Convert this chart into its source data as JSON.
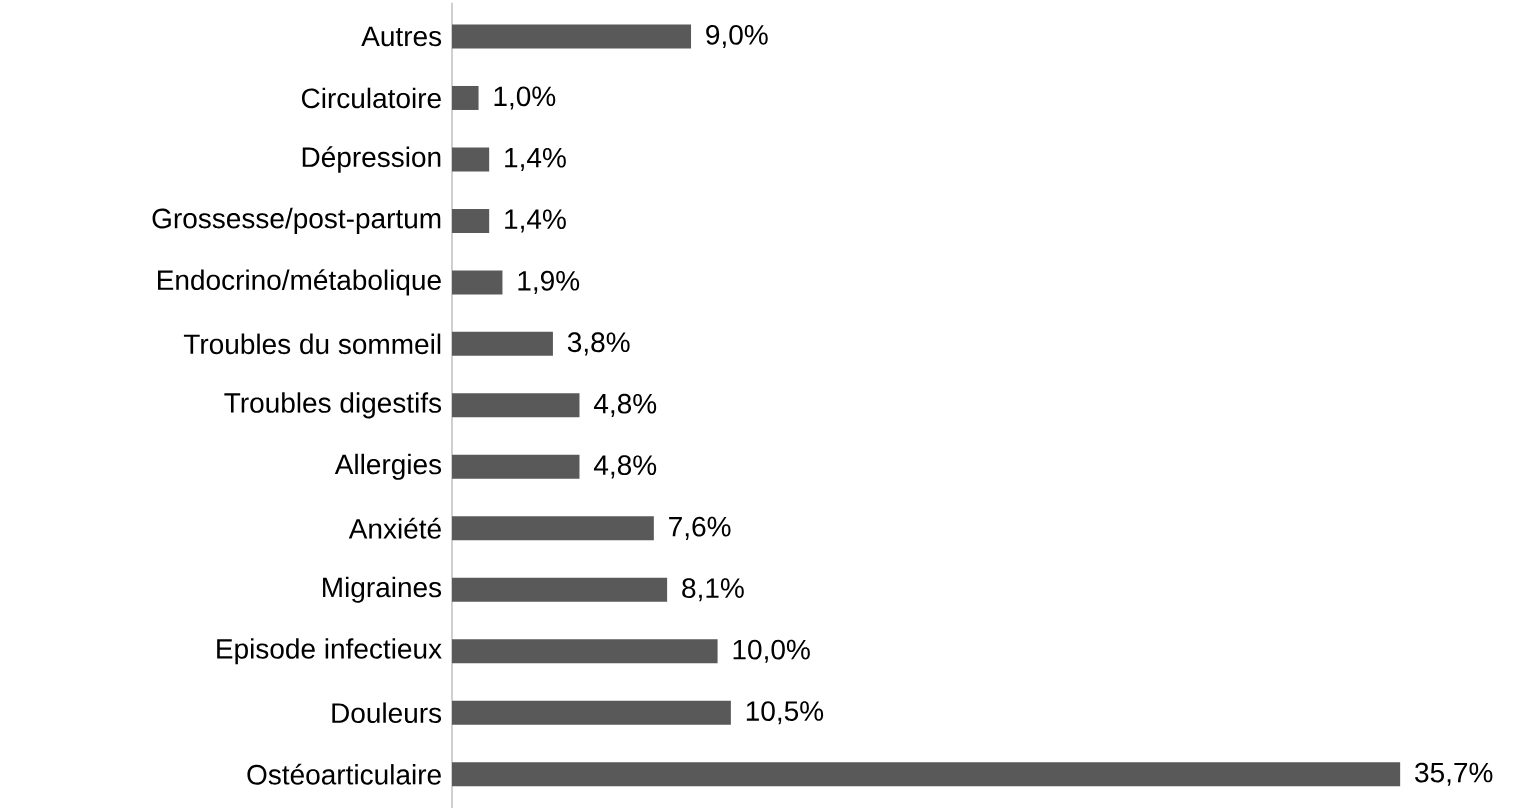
{
  "chart_data": {
    "type": "bar",
    "orientation": "horizontal",
    "categories": [
      "Autres",
      "Circulatoire",
      "Dépression",
      "Grossesse/post-partum",
      "Endocrino/métabolique",
      "Troubles du sommeil",
      "Troubles digestifs",
      "Allergies",
      "Anxiété",
      "Migraines",
      "Episode infectieux",
      "Douleurs",
      "Ostéoarticulaire"
    ],
    "values": [
      9.0,
      1.0,
      1.4,
      1.4,
      1.9,
      3.8,
      4.8,
      4.8,
      7.6,
      8.1,
      10.0,
      10.5,
      35.7
    ],
    "value_labels": [
      "9,0%",
      "1,0%",
      "1,4%",
      "1,4%",
      "1,9%",
      "3,8%",
      "4,8%",
      "4,8%",
      "7,6%",
      "8,1%",
      "10,0%",
      "10,5%",
      "35,7%"
    ],
    "color": "#595959"
  }
}
